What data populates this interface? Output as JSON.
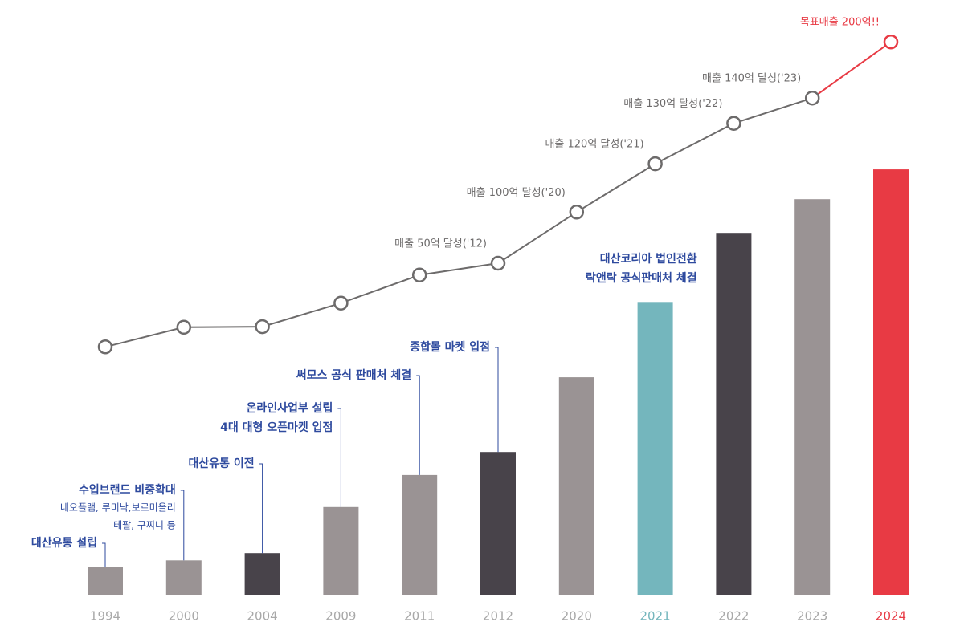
{
  "chart_data": {
    "type": "bar",
    "categories": [
      "1994",
      "2000",
      "2004",
      "2009",
      "2011",
      "2012",
      "2020",
      "2021",
      "2022",
      "2023",
      "2024"
    ],
    "ylim": [
      0,
      100
    ],
    "series": [
      {
        "type": "bar",
        "values": [
          5,
          6.1,
          7.4,
          15.6,
          21.3,
          25.4,
          38.7,
          52.1,
          64.4,
          70.4,
          75.7
        ],
        "colors": [
          "#9a9394",
          "#9a9394",
          "#48434a",
          "#9a9394",
          "#9a9394",
          "#48434a",
          "#9a9394",
          "#74b6bd",
          "#48434a",
          "#9a9394",
          "#e83a44"
        ]
      },
      {
        "type": "line",
        "color": "#6d6b6b",
        "highlight_color": "#e83a44",
        "values": [
          44.1,
          47.6,
          47.7,
          51.9,
          56.9,
          59,
          68.1,
          76.7,
          83.9,
          88.4,
          98.4
        ],
        "point_labels": [
          null,
          null,
          null,
          null,
          null,
          "매출 50억 달성('12)",
          "매출 100억 달성('20)",
          "매출 120억 달성('21)",
          "매출 130억 달성('22)",
          "매출 140억 달성('23)",
          "목표매출 200억!!"
        ]
      }
    ],
    "label_colors": [
      "#a8a8a8",
      "#a8a8a8",
      "#a8a8a8",
      "#a8a8a8",
      "#a8a8a8",
      "#a8a8a8",
      "#a8a8a8",
      "#74b6bd",
      "#a8a8a8",
      "#a8a8a8",
      "#e83a44"
    ],
    "note_color": "#2e4a9e",
    "bar_notes": [
      {
        "lines": [
          "대산유통 설립"
        ]
      },
      {
        "lines": [
          "수입브랜드 비중확대"
        ],
        "detail": [
          "네오플램, 루미낙,보르미올리",
          "테팔, 구찌니 등"
        ]
      },
      {
        "lines": [
          "대산유통 이전"
        ]
      },
      {
        "lines": [
          "온라인사업부 설립",
          "4대 대형 오픈마켓 입점"
        ]
      },
      {
        "lines": [
          "써모스 공식 판매처 체결"
        ]
      },
      {
        "lines": [
          "종합몰 마켓 입점"
        ]
      },
      null,
      {
        "lines": [
          "대산코리아 법인전환",
          "락앤락 공식판매처 체결"
        ]
      },
      null,
      null,
      null
    ]
  }
}
